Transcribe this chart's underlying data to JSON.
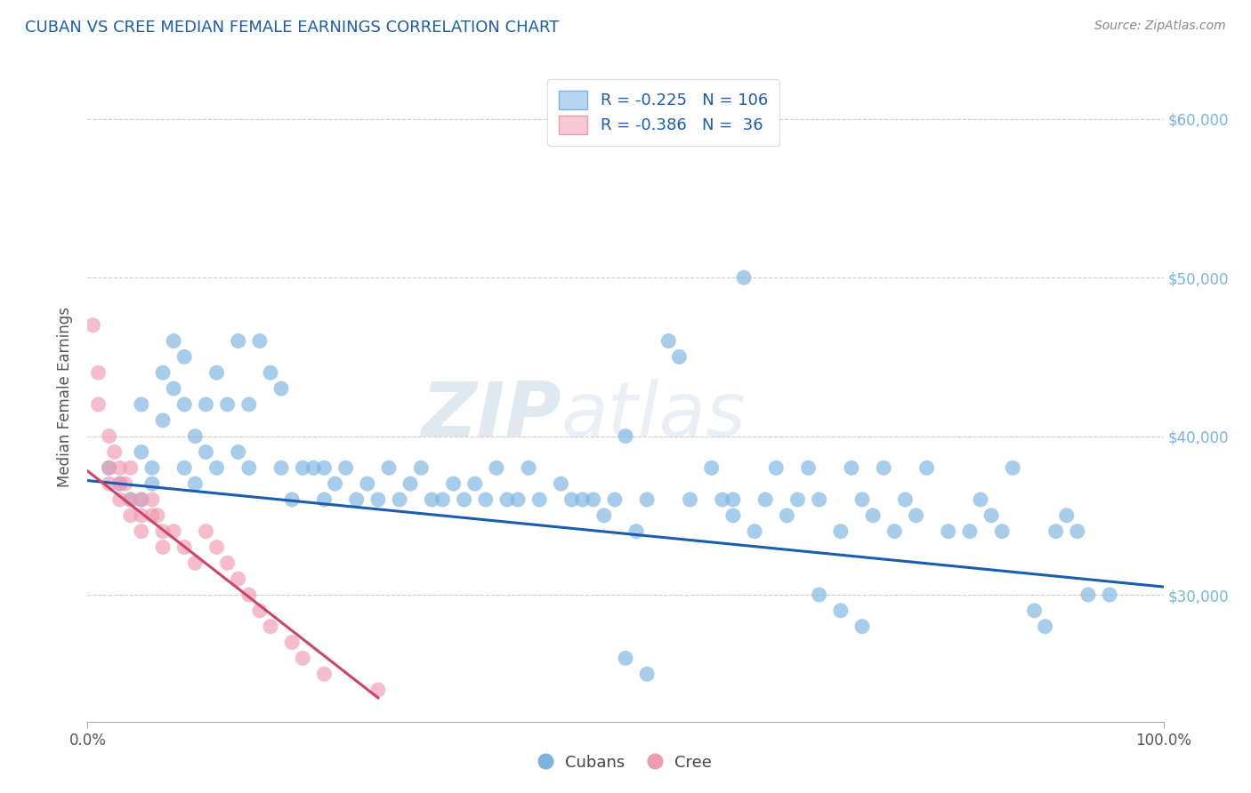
{
  "title": "CUBAN VS CREE MEDIAN FEMALE EARNINGS CORRELATION CHART",
  "source": "Source: ZipAtlas.com",
  "ylabel": "Median Female Earnings",
  "xlim": [
    0.0,
    1.0
  ],
  "ylim": [
    22000,
    63000
  ],
  "ytick_values": [
    30000,
    40000,
    50000,
    60000
  ],
  "ytick_labels": [
    "$30,000",
    "$40,000",
    "$50,000",
    "$60,000"
  ],
  "cubans_scatter_color": "#7ab3e0",
  "cree_scatter_color": "#f09ab0",
  "cubans_line_color": "#1a5cb0",
  "cree_line_color": "#cc4466",
  "background_color": "#ffffff",
  "grid_color": "#cccccc",
  "title_color": "#1a5cb0",
  "source_color": "#888888",
  "cubans_trendline_x": [
    0.0,
    1.0
  ],
  "cubans_trendline_y": [
    37200,
    30500
  ],
  "cree_trendline_x": [
    0.0,
    0.27
  ],
  "cree_trendline_y": [
    37800,
    23500
  ],
  "cubans_x": [
    0.02,
    0.03,
    0.04,
    0.05,
    0.05,
    0.05,
    0.06,
    0.06,
    0.07,
    0.07,
    0.08,
    0.08,
    0.09,
    0.09,
    0.09,
    0.1,
    0.1,
    0.11,
    0.11,
    0.12,
    0.12,
    0.13,
    0.14,
    0.14,
    0.15,
    0.15,
    0.16,
    0.17,
    0.18,
    0.18,
    0.19,
    0.2,
    0.21,
    0.22,
    0.22,
    0.23,
    0.24,
    0.25,
    0.26,
    0.27,
    0.28,
    0.29,
    0.3,
    0.31,
    0.32,
    0.33,
    0.34,
    0.35,
    0.36,
    0.37,
    0.38,
    0.39,
    0.4,
    0.41,
    0.42,
    0.44,
    0.45,
    0.46,
    0.47,
    0.48,
    0.49,
    0.5,
    0.51,
    0.52,
    0.54,
    0.55,
    0.56,
    0.58,
    0.59,
    0.6,
    0.61,
    0.62,
    0.63,
    0.64,
    0.65,
    0.66,
    0.67,
    0.68,
    0.7,
    0.71,
    0.72,
    0.73,
    0.74,
    0.75,
    0.76,
    0.77,
    0.78,
    0.8,
    0.82,
    0.83,
    0.84,
    0.85,
    0.86,
    0.88,
    0.89,
    0.9,
    0.91,
    0.92,
    0.93,
    0.95,
    0.5,
    0.52,
    0.6,
    0.68,
    0.7,
    0.72
  ],
  "cubans_y": [
    38000,
    37000,
    36000,
    42000,
    39000,
    36000,
    38000,
    37000,
    44000,
    41000,
    46000,
    43000,
    45000,
    42000,
    38000,
    40000,
    37000,
    42000,
    39000,
    44000,
    38000,
    42000,
    46000,
    39000,
    42000,
    38000,
    46000,
    44000,
    43000,
    38000,
    36000,
    38000,
    38000,
    38000,
    36000,
    37000,
    38000,
    36000,
    37000,
    36000,
    38000,
    36000,
    37000,
    38000,
    36000,
    36000,
    37000,
    36000,
    37000,
    36000,
    38000,
    36000,
    36000,
    38000,
    36000,
    37000,
    36000,
    36000,
    36000,
    35000,
    36000,
    40000,
    34000,
    36000,
    46000,
    45000,
    36000,
    38000,
    36000,
    35000,
    50000,
    34000,
    36000,
    38000,
    35000,
    36000,
    38000,
    36000,
    34000,
    38000,
    36000,
    35000,
    38000,
    34000,
    36000,
    35000,
    38000,
    34000,
    34000,
    36000,
    35000,
    34000,
    38000,
    29000,
    28000,
    34000,
    35000,
    34000,
    30000,
    30000,
    26000,
    25000,
    36000,
    30000,
    29000,
    28000
  ],
  "cree_x": [
    0.005,
    0.01,
    0.01,
    0.02,
    0.02,
    0.02,
    0.025,
    0.03,
    0.03,
    0.03,
    0.035,
    0.04,
    0.04,
    0.04,
    0.05,
    0.05,
    0.05,
    0.06,
    0.06,
    0.065,
    0.07,
    0.07,
    0.08,
    0.09,
    0.1,
    0.11,
    0.12,
    0.13,
    0.14,
    0.15,
    0.16,
    0.17,
    0.19,
    0.2,
    0.22,
    0.27
  ],
  "cree_y": [
    47000,
    44000,
    42000,
    40000,
    38000,
    37000,
    39000,
    38000,
    37000,
    36000,
    37000,
    38000,
    36000,
    35000,
    36000,
    35000,
    34000,
    36000,
    35000,
    35000,
    34000,
    33000,
    34000,
    33000,
    32000,
    34000,
    33000,
    32000,
    31000,
    30000,
    29000,
    28000,
    27000,
    26000,
    25000,
    24000
  ]
}
